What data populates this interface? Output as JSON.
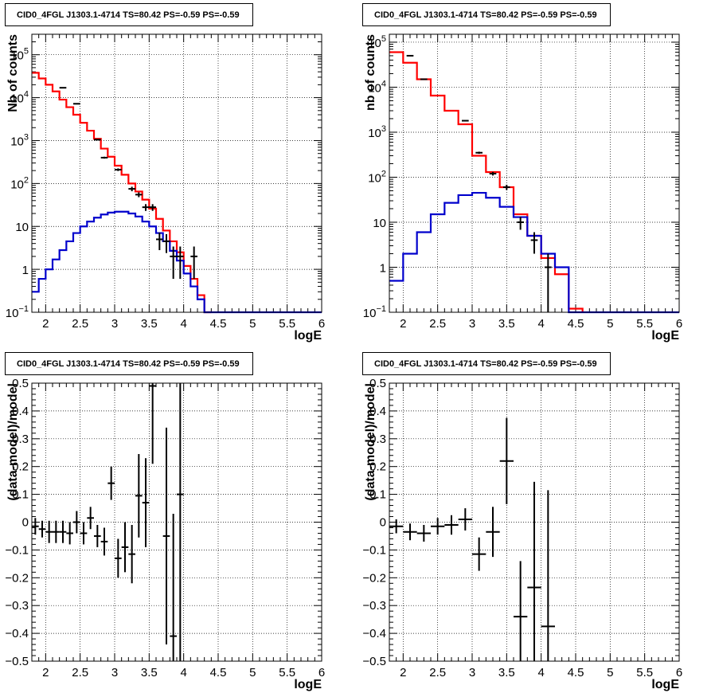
{
  "chart_data": [
    {
      "type": "line",
      "panel": "top-left",
      "title": "CID0_4FGL J1303.1-4714 TS=80.42 PS=-0.59 PS=-0.59",
      "xlabel": "logE",
      "ylabel": "Nb of counts",
      "xlim": [
        1.8,
        6.0
      ],
      "ylim": [
        0.1,
        300000
      ],
      "yscale": "log",
      "grid": true,
      "x_ticks": [
        "2",
        "2.5",
        "3",
        "3.5",
        "4",
        "4.5",
        "5",
        "5.5",
        "6"
      ],
      "y_ticks": [
        {
          "value": 0.1,
          "base": "10",
          "exp": "−1"
        },
        {
          "value": 1,
          "base": "1",
          "exp": ""
        },
        {
          "value": 10,
          "base": "10",
          "exp": ""
        },
        {
          "value": 100,
          "base": "10",
          "exp": "2"
        },
        {
          "value": 1000,
          "base": "10",
          "exp": "3"
        },
        {
          "value": 10000,
          "base": "10",
          "exp": "4"
        },
        {
          "value": 100000,
          "base": "10",
          "exp": "5"
        }
      ],
      "bin_edges": [
        1.8,
        1.9,
        2.0,
        2.1,
        2.2,
        2.3,
        2.4,
        2.5,
        2.6,
        2.7,
        2.8,
        2.9,
        3.0,
        3.1,
        3.2,
        3.3,
        3.4,
        3.5,
        3.6,
        3.7,
        3.8,
        3.9,
        4.0,
        4.1,
        4.2,
        4.3,
        4.4,
        4.5,
        4.6,
        4.7,
        4.8,
        4.9,
        5.0,
        5.1,
        5.2,
        5.3,
        5.4,
        5.5,
        5.6,
        5.7,
        5.8,
        5.9,
        6.0
      ],
      "series": [
        {
          "color": "#ff0000",
          "values": [
            38000,
            28000,
            20000,
            14000,
            9000,
            6000,
            4000,
            2600,
            1700,
            1100,
            650,
            420,
            260,
            160,
            100,
            65,
            42,
            26,
            15,
            8,
            4.5,
            2.5,
            1.2,
            0.6,
            0.25,
            0.1,
            0,
            0,
            0,
            0,
            0,
            0,
            0,
            0,
            0,
            0,
            0,
            0,
            0,
            0,
            0,
            0
          ]
        },
        {
          "color": "#0000cc",
          "values": [
            0.3,
            0.6,
            1.0,
            1.7,
            2.8,
            4.5,
            7,
            10,
            13,
            16,
            19,
            21,
            22,
            22,
            20,
            17,
            13,
            10,
            7,
            4.5,
            2.7,
            1.6,
            0.8,
            0.4,
            0.2,
            0.1,
            0.1,
            0.1,
            0.1,
            0.1,
            0.1,
            0.1,
            0.1,
            0.1,
            0.1,
            0.1,
            0.1,
            0.1,
            0.1,
            0.1,
            0.1,
            0.1
          ]
        }
      ],
      "points": [
        {
          "x": 2.25,
          "y": 17000,
          "err": 130
        },
        {
          "x": 2.45,
          "y": 7200,
          "err": 85
        },
        {
          "x": 2.75,
          "y": 1050,
          "err": 32
        },
        {
          "x": 2.85,
          "y": 400,
          "err": 20
        },
        {
          "x": 3.05,
          "y": 210,
          "err": 15
        },
        {
          "x": 3.25,
          "y": 75,
          "err": 9
        },
        {
          "x": 3.35,
          "y": 55,
          "err": 7
        },
        {
          "x": 3.45,
          "y": 28,
          "err": 5
        },
        {
          "x": 3.55,
          "y": 28,
          "err": 5
        },
        {
          "x": 3.65,
          "y": 5,
          "err": 2.2
        },
        {
          "x": 3.75,
          "y": 4.5,
          "err": 2.1
        },
        {
          "x": 3.85,
          "y": 2,
          "err": 1.4
        },
        {
          "x": 3.95,
          "y": 2,
          "err": 1.4
        },
        {
          "x": 4.15,
          "y": 2,
          "err": 1.4
        }
      ]
    },
    {
      "type": "line",
      "panel": "top-right",
      "title": "CID0_4FGL J1303.1-4714 TS=80.42 PS=-0.59 PS=-0.59",
      "xlabel": "logE",
      "ylabel": "nb of counts",
      "xlim": [
        1.8,
        6.0
      ],
      "ylim": [
        0.1,
        150000
      ],
      "yscale": "log",
      "grid": true,
      "x_ticks": [
        "2",
        "2.5",
        "3",
        "3.5",
        "4",
        "4.5",
        "5",
        "5.5",
        "6"
      ],
      "y_ticks": [
        {
          "value": 0.1,
          "base": "10",
          "exp": "−1"
        },
        {
          "value": 1,
          "base": "1",
          "exp": ""
        },
        {
          "value": 10,
          "base": "10",
          "exp": ""
        },
        {
          "value": 100,
          "base": "10",
          "exp": "2"
        },
        {
          "value": 1000,
          "base": "10",
          "exp": "3"
        },
        {
          "value": 10000,
          "base": "10",
          "exp": "4"
        },
        {
          "value": 100000,
          "base": "10",
          "exp": "5"
        }
      ],
      "bin_edges": [
        1.8,
        2.0,
        2.2,
        2.4,
        2.6,
        2.8,
        3.0,
        3.2,
        3.4,
        3.6,
        3.8,
        4.0,
        4.2,
        4.4,
        4.6,
        4.8,
        5.0,
        5.2,
        5.4,
        5.6,
        5.8,
        6.0
      ],
      "series": [
        {
          "color": "#ff0000",
          "values": [
            60000,
            35000,
            15000,
            6500,
            3000,
            1500,
            300,
            130,
            60,
            15,
            5,
            1.6,
            0.7,
            0.12,
            0,
            0,
            0,
            0,
            0,
            0,
            0
          ]
        },
        {
          "color": "#0000cc",
          "values": [
            0.5,
            2,
            6,
            15,
            27,
            40,
            45,
            35,
            22,
            13,
            5,
            2,
            1,
            0.1,
            0.1,
            0.1,
            0.1,
            0.1,
            0.1,
            0.1,
            0.1
          ]
        }
      ],
      "points": [
        {
          "x": 2.1,
          "y": 50000,
          "err": 220
        },
        {
          "x": 2.3,
          "y": 15000,
          "err": 120
        },
        {
          "x": 2.9,
          "y": 1800,
          "err": 42
        },
        {
          "x": 3.1,
          "y": 350,
          "err": 19
        },
        {
          "x": 3.3,
          "y": 120,
          "err": 11
        },
        {
          "x": 3.5,
          "y": 60,
          "err": 8
        },
        {
          "x": 3.7,
          "y": 10,
          "err": 3.2
        },
        {
          "x": 3.9,
          "y": 4,
          "err": 2
        },
        {
          "x": 4.1,
          "y": 1,
          "err": 1
        }
      ]
    },
    {
      "type": "scatter",
      "panel": "bottom-left",
      "title": "CID0_4FGL J1303.1-4714 TS=80.42 PS=-0.59 PS=-0.59",
      "xlabel": "logE",
      "ylabel": "(data-model)/model",
      "xlim": [
        1.8,
        6.0
      ],
      "ylim": [
        -0.5,
        0.5
      ],
      "grid": true,
      "x_ticks": [
        "2",
        "2.5",
        "3",
        "3.5",
        "4",
        "4.5",
        "5",
        "5.5",
        "6"
      ],
      "y_ticks": [
        "−0.5",
        "−0.4",
        "−0.3",
        "−0.2",
        "−0.1",
        "0",
        "0.1",
        "0.2",
        "0.3",
        "0.4",
        "0.5"
      ],
      "xerr": 0.05,
      "points": [
        {
          "x": 1.85,
          "y": -0.015,
          "err": 0.03
        },
        {
          "x": 1.95,
          "y": -0.025,
          "err": 0.03
        },
        {
          "x": 2.05,
          "y": -0.035,
          "err": 0.04
        },
        {
          "x": 2.15,
          "y": -0.035,
          "err": 0.04
        },
        {
          "x": 2.25,
          "y": -0.035,
          "err": 0.04
        },
        {
          "x": 2.35,
          "y": -0.04,
          "err": 0.04
        },
        {
          "x": 2.45,
          "y": 0.0,
          "err": 0.04
        },
        {
          "x": 2.55,
          "y": -0.04,
          "err": 0.04
        },
        {
          "x": 2.65,
          "y": 0.015,
          "err": 0.04
        },
        {
          "x": 2.75,
          "y": -0.05,
          "err": 0.04
        },
        {
          "x": 2.85,
          "y": -0.07,
          "err": 0.05
        },
        {
          "x": 2.95,
          "y": 0.14,
          "err": 0.06
        },
        {
          "x": 3.05,
          "y": -0.13,
          "err": 0.07
        },
        {
          "x": 3.15,
          "y": -0.09,
          "err": 0.09
        },
        {
          "x": 3.25,
          "y": -0.115,
          "err": 0.105
        },
        {
          "x": 3.35,
          "y": 0.095,
          "err": 0.15
        },
        {
          "x": 3.45,
          "y": 0.07,
          "err": 0.16
        },
        {
          "x": 3.55,
          "y": 0.49,
          "err": 0.28
        },
        {
          "x": 3.75,
          "y": -0.05,
          "err": 0.39
        },
        {
          "x": 3.85,
          "y": -0.41,
          "err": 0.44
        },
        {
          "x": 3.95,
          "y": 0.1,
          "err": 0.6
        }
      ]
    },
    {
      "type": "scatter",
      "panel": "bottom-right",
      "title": "CID0_4FGL J1303.1-4714 TS=80.42 PS=-0.59 PS=-0.59",
      "xlabel": "logE",
      "ylabel": "(data-model)/model",
      "xlim": [
        1.8,
        6.0
      ],
      "ylim": [
        -0.5,
        0.5
      ],
      "grid": true,
      "x_ticks": [
        "2",
        "2.5",
        "3",
        "3.5",
        "4",
        "4.5",
        "5",
        "5.5",
        "6"
      ],
      "y_ticks": [
        "−0.5",
        "−0.4",
        "−0.3",
        "−0.2",
        "−0.1",
        "0",
        "0.1",
        "0.2",
        "0.3",
        "0.4",
        "0.5"
      ],
      "xerr": 0.1,
      "points": [
        {
          "x": 1.9,
          "y": -0.015,
          "err": 0.025
        },
        {
          "x": 2.1,
          "y": -0.035,
          "err": 0.03
        },
        {
          "x": 2.3,
          "y": -0.04,
          "err": 0.03
        },
        {
          "x": 2.5,
          "y": -0.015,
          "err": 0.03
        },
        {
          "x": 2.7,
          "y": -0.01,
          "err": 0.035
        },
        {
          "x": 2.9,
          "y": 0.01,
          "err": 0.04
        },
        {
          "x": 3.1,
          "y": -0.115,
          "err": 0.06
        },
        {
          "x": 3.3,
          "y": -0.035,
          "err": 0.09
        },
        {
          "x": 3.5,
          "y": 0.22,
          "err": 0.155
        },
        {
          "x": 3.7,
          "y": -0.34,
          "err": 0.2
        },
        {
          "x": 3.9,
          "y": -0.235,
          "err": 0.38
        },
        {
          "x": 4.1,
          "y": -0.375,
          "err": 0.49
        }
      ]
    }
  ]
}
